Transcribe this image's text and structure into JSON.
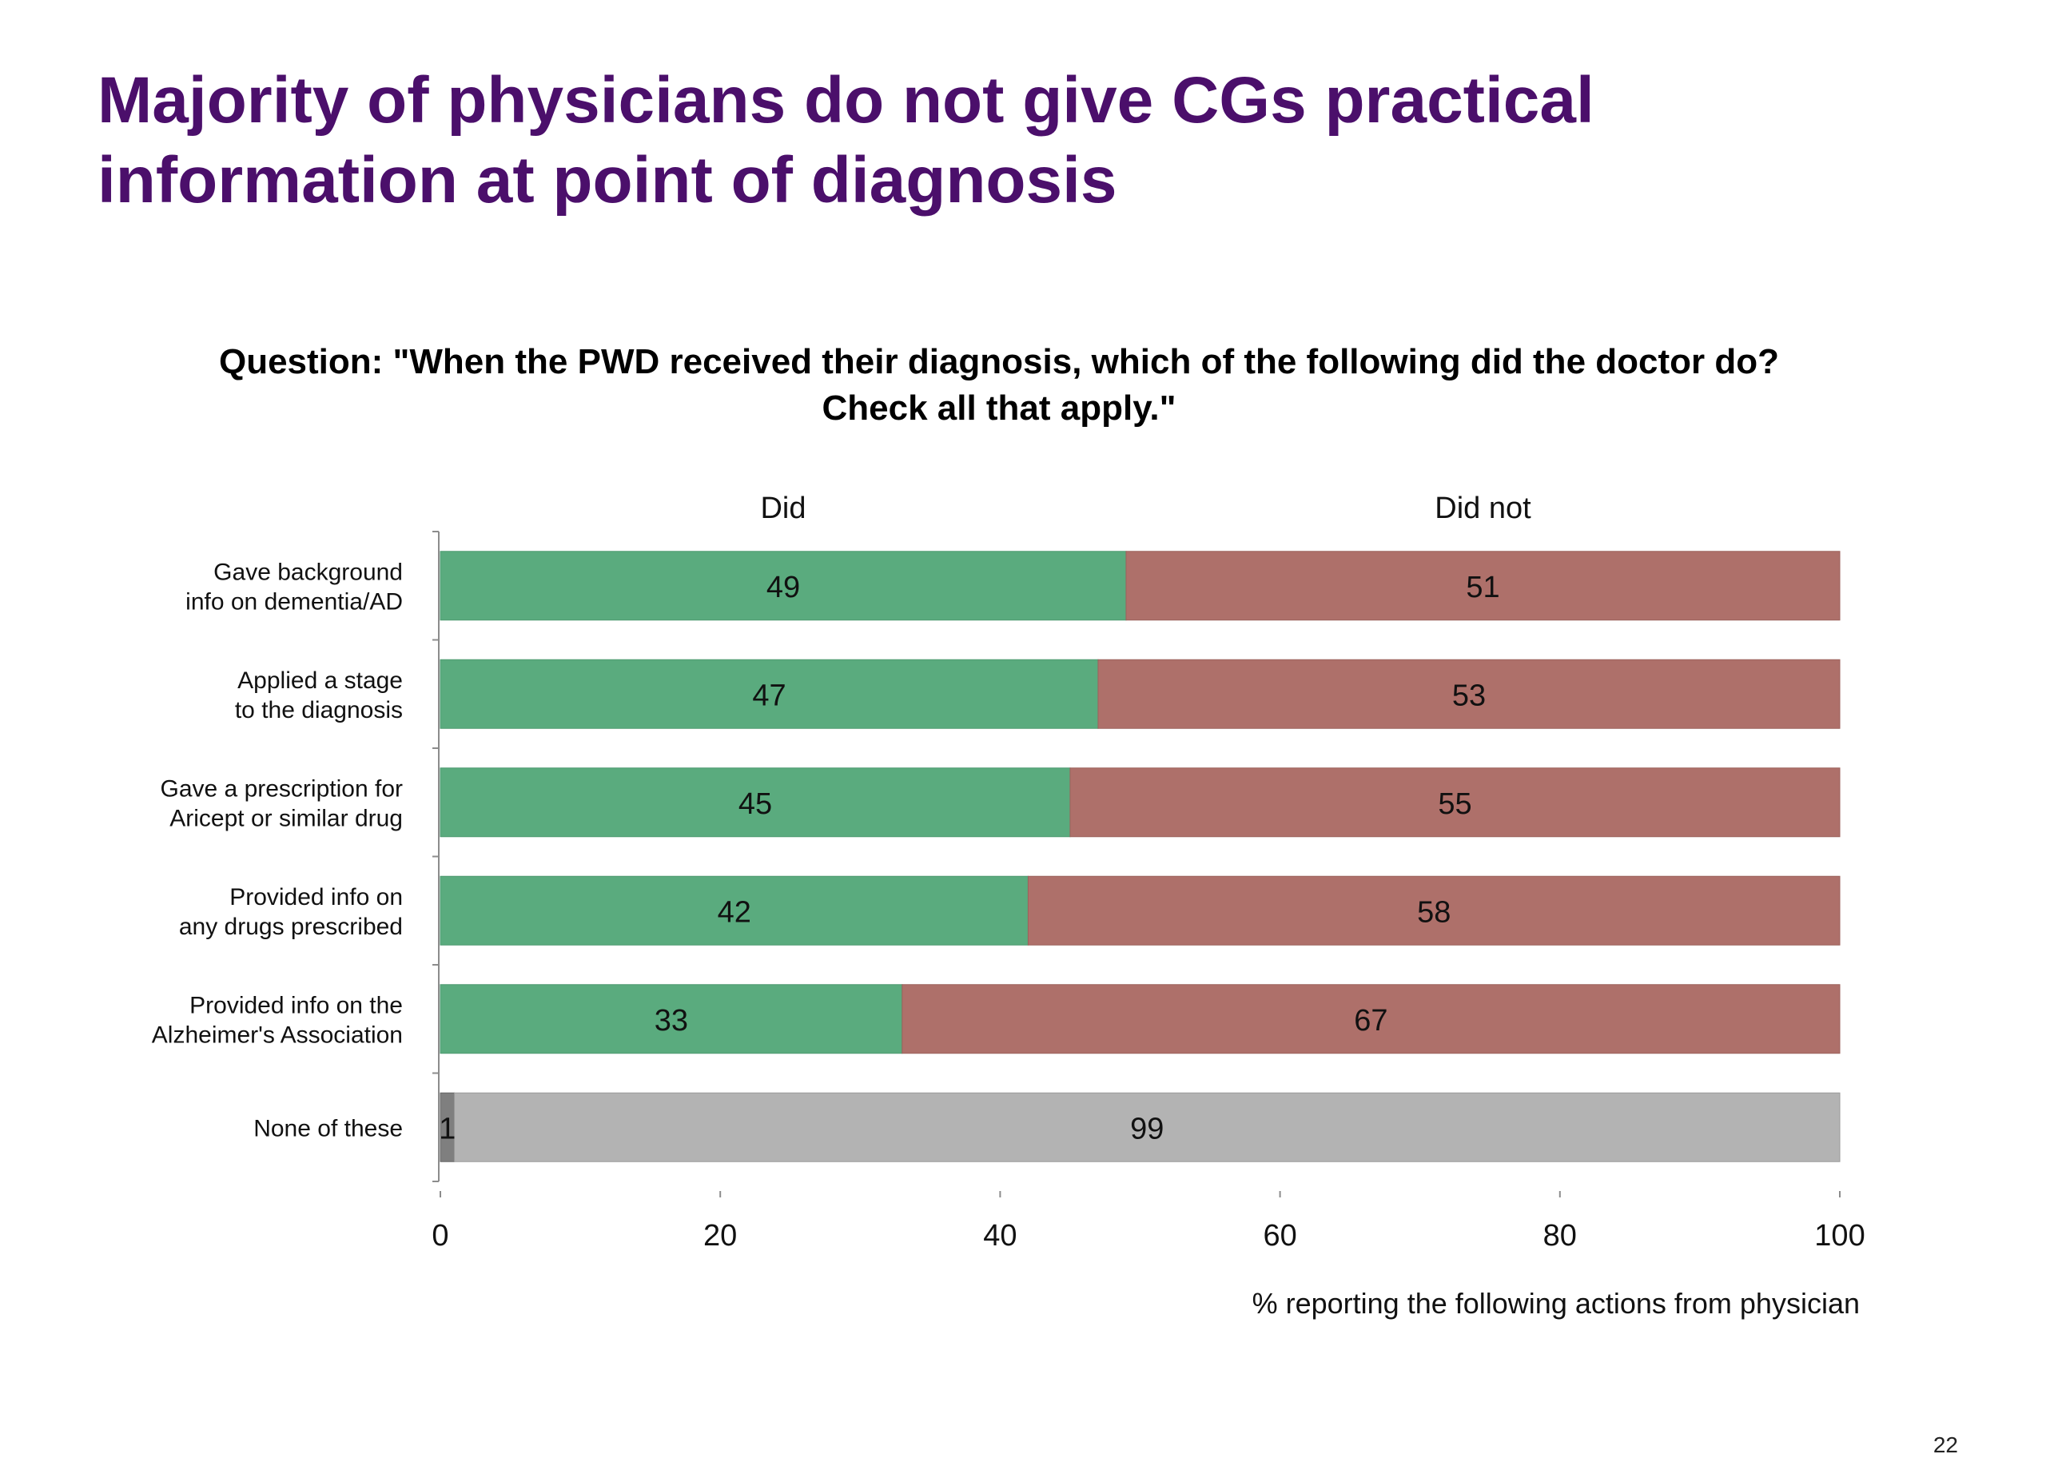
{
  "slide": {
    "title_line1": "Majority of physicians do not give CGs practical",
    "title_line2": "information at point of diagnosis",
    "question_line1": "Question: \"When the PWD received their diagnosis, which of the following did the doctor do?",
    "question_line2": "Check all that apply.\"",
    "page_number": "22"
  },
  "colors": {
    "did": "#5aab7e",
    "did_not": "#ae706a",
    "none_small": "#7f7f7f",
    "none_large": "#b3b3b3"
  },
  "chart_data": {
    "type": "bar",
    "orientation": "horizontal",
    "stacked": true,
    "categories": [
      [
        "Gave background",
        "info on dementia/AD"
      ],
      [
        "Applied a stage",
        "to the diagnosis"
      ],
      [
        "Gave a prescription for",
        "Aricept or similar drug"
      ],
      [
        "Provided info on",
        "any drugs prescribed"
      ],
      [
        "Provided info on the",
        "Alzheimer's Association"
      ],
      [
        "None of these"
      ]
    ],
    "series": [
      {
        "name": "Did",
        "values": [
          49,
          47,
          45,
          42,
          33,
          1
        ]
      },
      {
        "name": "Did not",
        "values": [
          51,
          53,
          55,
          58,
          67,
          99
        ]
      }
    ],
    "xlim": [
      0,
      100
    ],
    "xticks": [
      0,
      20,
      40,
      60,
      80,
      100
    ],
    "xlabel": "%  reporting the following actions from physician",
    "legend_placement": "top",
    "grid": false
  }
}
